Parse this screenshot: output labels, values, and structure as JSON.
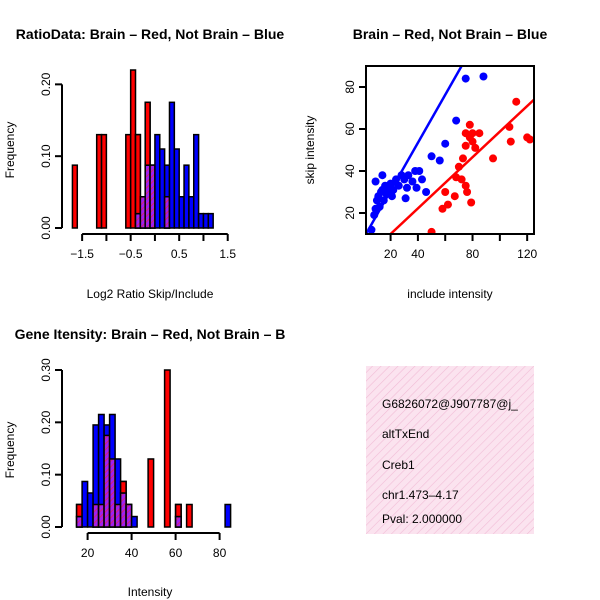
{
  "colors": {
    "red": "#ff0000",
    "blue": "#0000ff",
    "overlap": "#a020f0",
    "info_bg": "#fbe1ef",
    "pval": "#8b0000"
  },
  "chart_data": [
    {
      "id": "ratio-hist",
      "type": "bar",
      "title": "RatioData: Brain – Red, Not Brain – Blue",
      "xlabel": "Log2 Ratio Skip/Include",
      "ylabel": "Frequency",
      "xlim": [
        -1.75,
        1.65
      ],
      "ylim": [
        0,
        0.22
      ],
      "xticks": [
        -1.5,
        -1.0,
        -0.5,
        0.0,
        0.5,
        1.0,
        1.5
      ],
      "xtick_labels": [
        "-1.5",
        "",
        "-0.5",
        "",
        "0.5",
        "",
        "1.5"
      ],
      "yticks": [
        0.0,
        0.1,
        0.2
      ],
      "ytick_labels": [
        "0.00",
        "0.10",
        "0.20"
      ],
      "bin_width": 0.1,
      "series": [
        {
          "name": "Brain",
          "color": "red",
          "bins": [
            [
              -1.7,
              0.0875
            ],
            [
              -1.2,
              0.13
            ],
            [
              -1.1,
              0.13
            ],
            [
              -0.6,
              0.13
            ],
            [
              -0.5,
              0.22
            ],
            [
              -0.4,
              0.13
            ],
            [
              -0.3,
              0.0435
            ],
            [
              -0.2,
              0.175
            ],
            [
              -0.1,
              0.0875
            ],
            [
              0.2,
              0.0435
            ]
          ]
        },
        {
          "name": "Not Brain",
          "color": "blue",
          "bins": [
            [
              -0.4,
              0.02
            ],
            [
              -0.3,
              0.0435
            ],
            [
              -0.2,
              0.0875
            ],
            [
              -0.1,
              0.0875
            ],
            [
              0.0,
              0.13
            ],
            [
              0.1,
              0.11
            ],
            [
              0.2,
              0.0875
            ],
            [
              0.3,
              0.175
            ],
            [
              0.4,
              0.11
            ],
            [
              0.5,
              0.0435
            ],
            [
              0.6,
              0.0875
            ],
            [
              0.7,
              0.0435
            ],
            [
              0.8,
              0.13
            ],
            [
              0.9,
              0.02
            ],
            [
              1.0,
              0.02
            ],
            [
              1.1,
              0.02
            ]
          ]
        }
      ]
    },
    {
      "id": "intensity-scatter",
      "type": "scatter",
      "title": "Brain – Red, Not Brain – Blue",
      "xlabel": "include intensity",
      "ylabel": "skip intensity",
      "xlim": [
        2,
        125
      ],
      "ylim": [
        10,
        90
      ],
      "xticks": [
        20,
        40,
        60,
        80,
        100,
        120
      ],
      "xtick_labels": [
        "20",
        "40",
        "",
        "80",
        "",
        "120"
      ],
      "yticks": [
        20,
        40,
        60,
        80
      ],
      "ytick_labels": [
        "20",
        "40",
        "60",
        "80"
      ],
      "series": [
        {
          "name": "Not Brain",
          "color": "blue",
          "points": [
            [
              8,
              19
            ],
            [
              9,
              22
            ],
            [
              10,
              26
            ],
            [
              11,
              28
            ],
            [
              12,
              23
            ],
            [
              13,
              30
            ],
            [
              14,
              31
            ],
            [
              15,
              26
            ],
            [
              16,
              33
            ],
            [
              17,
              29
            ],
            [
              18,
              32
            ],
            [
              19,
              30
            ],
            [
              20,
              34
            ],
            [
              21,
              28
            ],
            [
              22,
              31
            ],
            [
              24,
              36
            ],
            [
              26,
              33
            ],
            [
              28,
              38
            ],
            [
              30,
              36
            ],
            [
              31,
              27
            ],
            [
              32,
              32
            ],
            [
              33,
              38
            ],
            [
              36,
              35
            ],
            [
              38,
              40
            ],
            [
              39,
              32
            ],
            [
              41,
              40
            ],
            [
              43,
              36
            ],
            [
              46,
              30
            ],
            [
              50,
              47
            ],
            [
              56,
              45
            ],
            [
              60,
              53
            ],
            [
              68,
              64
            ],
            [
              75,
              84
            ],
            [
              88,
              85
            ],
            [
              6,
              12
            ],
            [
              9,
              35
            ],
            [
              14,
              38
            ]
          ],
          "fit": [
            [
              2,
              10
            ],
            [
              72,
              90
            ]
          ]
        },
        {
          "name": "Brain",
          "color": "red",
          "points": [
            [
              50,
              11
            ],
            [
              58,
              22
            ],
            [
              60,
              30
            ],
            [
              62,
              24
            ],
            [
              67,
              28
            ],
            [
              68,
              37
            ],
            [
              70,
              42
            ],
            [
              72,
              36
            ],
            [
              73,
              46
            ],
            [
              75,
              33
            ],
            [
              75,
              52
            ],
            [
              75,
              58
            ],
            [
              76,
              30
            ],
            [
              78,
              56
            ],
            [
              78,
              62
            ],
            [
              79,
              25
            ],
            [
              80,
              54
            ],
            [
              80,
              58
            ],
            [
              82,
              51
            ],
            [
              85,
              58
            ],
            [
              95,
              46
            ],
            [
              107,
              61
            ],
            [
              108,
              54
            ],
            [
              112,
              73
            ],
            [
              120,
              56
            ],
            [
              122,
              55
            ]
          ],
          "fit": [
            [
              20,
              10
            ],
            [
              125,
              74
            ]
          ]
        }
      ]
    },
    {
      "id": "gene-hist",
      "type": "bar",
      "title": "Gene Itensity: Brain – Red, Not Brain – B",
      "xlabel": "Intensity",
      "ylabel": "Frequency",
      "xlim": [
        12,
        87
      ],
      "ylim": [
        0,
        0.3
      ],
      "xticks": [
        20,
        40,
        60,
        80
      ],
      "xtick_labels": [
        "20",
        "40",
        "60",
        "80"
      ],
      "yticks": [
        0.0,
        0.1,
        0.2,
        0.3
      ],
      "ytick_labels": [
        "0.00",
        "0.10",
        "0.20",
        "0.30"
      ],
      "bin_width": 2.5,
      "series": [
        {
          "name": "Brain",
          "color": "red",
          "bins": [
            [
              15,
              0.043
            ],
            [
              22.5,
              0.043
            ],
            [
              25,
              0.043
            ],
            [
              27.5,
              0.175
            ],
            [
              30,
              0.13
            ],
            [
              32.5,
              0.043
            ],
            [
              35,
              0.087
            ],
            [
              37.5,
              0.043
            ],
            [
              47.5,
              0.13
            ],
            [
              55,
              0.3
            ],
            [
              60,
              0.043
            ],
            [
              65,
              0.043
            ]
          ]
        },
        {
          "name": "Not Brain",
          "color": "blue",
          "bins": [
            [
              15,
              0.02
            ],
            [
              17.5,
              0.087
            ],
            [
              20,
              0.065
            ],
            [
              22.5,
              0.195
            ],
            [
              25,
              0.215
            ],
            [
              27.5,
              0.195
            ],
            [
              30,
              0.215
            ],
            [
              32.5,
              0.13
            ],
            [
              35,
              0.065
            ],
            [
              37.5,
              0.043
            ],
            [
              40,
              0.02
            ],
            [
              60,
              0.02
            ],
            [
              82.5,
              0.043
            ]
          ]
        }
      ]
    }
  ],
  "info": {
    "gene_id": "G6826072@J907787@j_",
    "event_type": "altTxEnd",
    "gene_name": "Creb1",
    "score": "chr1.473–4.17",
    "pval": "Pval: 2.000000"
  }
}
